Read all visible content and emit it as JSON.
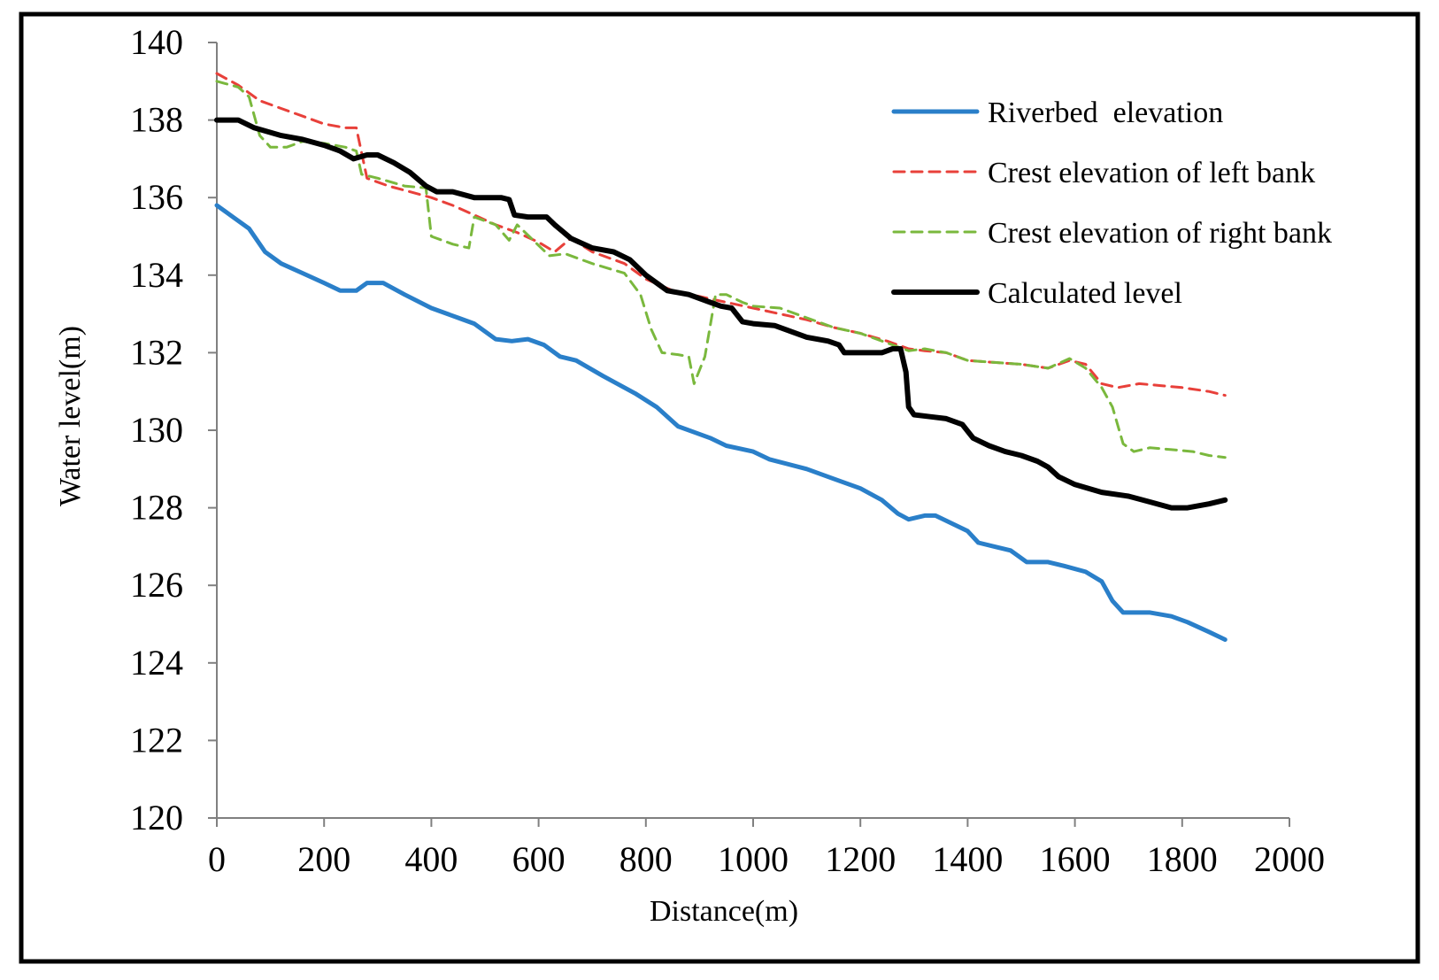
{
  "chart_data": {
    "type": "line",
    "title": "",
    "xlabel": "Distance(m)",
    "ylabel": "Water level(m)",
    "xlim": [
      0,
      2000
    ],
    "ylim": [
      120,
      140
    ],
    "xticks": [
      0,
      200,
      400,
      600,
      800,
      1000,
      1200,
      1400,
      1600,
      1800,
      2000
    ],
    "yticks": [
      120,
      122,
      124,
      126,
      128,
      130,
      132,
      134,
      136,
      138,
      140
    ],
    "grid": false,
    "legend_position": "top-right",
    "series": [
      {
        "name": "Riverbed  elevation",
        "color": "#2a7fc9",
        "style": "solid",
        "points": [
          [
            0,
            135.8
          ],
          [
            30,
            135.5
          ],
          [
            60,
            135.2
          ],
          [
            90,
            134.6
          ],
          [
            120,
            134.3
          ],
          [
            160,
            134.05
          ],
          [
            200,
            133.8
          ],
          [
            230,
            133.6
          ],
          [
            260,
            133.6
          ],
          [
            280,
            133.8
          ],
          [
            310,
            133.8
          ],
          [
            350,
            133.5
          ],
          [
            400,
            133.15
          ],
          [
            450,
            132.9
          ],
          [
            480,
            132.75
          ],
          [
            520,
            132.35
          ],
          [
            550,
            132.3
          ],
          [
            580,
            132.35
          ],
          [
            610,
            132.2
          ],
          [
            640,
            131.9
          ],
          [
            670,
            131.8
          ],
          [
            720,
            131.4
          ],
          [
            780,
            130.95
          ],
          [
            820,
            130.6
          ],
          [
            860,
            130.1
          ],
          [
            890,
            129.95
          ],
          [
            920,
            129.8
          ],
          [
            950,
            129.6
          ],
          [
            1000,
            129.45
          ],
          [
            1030,
            129.25
          ],
          [
            1100,
            129.0
          ],
          [
            1150,
            128.75
          ],
          [
            1200,
            128.5
          ],
          [
            1240,
            128.2
          ],
          [
            1270,
            127.85
          ],
          [
            1290,
            127.7
          ],
          [
            1320,
            127.8
          ],
          [
            1340,
            127.8
          ],
          [
            1370,
            127.6
          ],
          [
            1400,
            127.4
          ],
          [
            1420,
            127.1
          ],
          [
            1450,
            127.0
          ],
          [
            1480,
            126.9
          ],
          [
            1510,
            126.6
          ],
          [
            1550,
            126.6
          ],
          [
            1580,
            126.5
          ],
          [
            1620,
            126.35
          ],
          [
            1650,
            126.1
          ],
          [
            1670,
            125.6
          ],
          [
            1690,
            125.3
          ],
          [
            1720,
            125.3
          ],
          [
            1740,
            125.3
          ],
          [
            1780,
            125.2
          ],
          [
            1810,
            125.05
          ],
          [
            1850,
            124.8
          ],
          [
            1880,
            124.6
          ]
        ]
      },
      {
        "name": "Crest elevation of left bank",
        "color": "#e8403a",
        "style": "dashed",
        "points": [
          [
            0,
            139.2
          ],
          [
            40,
            138.9
          ],
          [
            80,
            138.5
          ],
          [
            120,
            138.3
          ],
          [
            160,
            138.1
          ],
          [
            200,
            137.9
          ],
          [
            240,
            137.8
          ],
          [
            260,
            137.8
          ],
          [
            280,
            136.5
          ],
          [
            320,
            136.3
          ],
          [
            360,
            136.15
          ],
          [
            400,
            136.0
          ],
          [
            440,
            135.8
          ],
          [
            480,
            135.55
          ],
          [
            520,
            135.3
          ],
          [
            560,
            135.1
          ],
          [
            600,
            134.85
          ],
          [
            630,
            134.6
          ],
          [
            660,
            134.95
          ],
          [
            700,
            134.6
          ],
          [
            760,
            134.3
          ],
          [
            800,
            133.9
          ],
          [
            850,
            133.6
          ],
          [
            900,
            133.45
          ],
          [
            950,
            133.3
          ],
          [
            1000,
            133.15
          ],
          [
            1050,
            133.0
          ],
          [
            1100,
            132.85
          ],
          [
            1150,
            132.65
          ],
          [
            1200,
            132.5
          ],
          [
            1250,
            132.3
          ],
          [
            1290,
            132.1
          ],
          [
            1320,
            132.05
          ],
          [
            1360,
            132.0
          ],
          [
            1400,
            131.8
          ],
          [
            1450,
            131.75
          ],
          [
            1500,
            131.7
          ],
          [
            1550,
            131.6
          ],
          [
            1590,
            131.8
          ],
          [
            1620,
            131.7
          ],
          [
            1650,
            131.2
          ],
          [
            1680,
            131.1
          ],
          [
            1720,
            131.2
          ],
          [
            1760,
            131.15
          ],
          [
            1800,
            131.1
          ],
          [
            1850,
            131.0
          ],
          [
            1880,
            130.9
          ]
        ]
      },
      {
        "name": "Crest elevation of right bank",
        "color": "#7ab83d",
        "style": "dashed",
        "points": [
          [
            0,
            139.0
          ],
          [
            40,
            138.85
          ],
          [
            60,
            138.6
          ],
          [
            80,
            137.6
          ],
          [
            100,
            137.3
          ],
          [
            130,
            137.3
          ],
          [
            160,
            137.45
          ],
          [
            200,
            137.4
          ],
          [
            240,
            137.3
          ],
          [
            260,
            137.2
          ],
          [
            270,
            136.6
          ],
          [
            300,
            136.5
          ],
          [
            350,
            136.3
          ],
          [
            390,
            136.25
          ],
          [
            400,
            135.0
          ],
          [
            440,
            134.8
          ],
          [
            470,
            134.7
          ],
          [
            480,
            135.5
          ],
          [
            520,
            135.3
          ],
          [
            545,
            134.9
          ],
          [
            560,
            135.3
          ],
          [
            590,
            134.9
          ],
          [
            620,
            134.5
          ],
          [
            650,
            134.55
          ],
          [
            700,
            134.3
          ],
          [
            760,
            134.05
          ],
          [
            790,
            133.5
          ],
          [
            810,
            132.6
          ],
          [
            830,
            132.0
          ],
          [
            860,
            131.95
          ],
          [
            880,
            131.9
          ],
          [
            890,
            131.2
          ],
          [
            910,
            131.9
          ],
          [
            930,
            133.5
          ],
          [
            950,
            133.5
          ],
          [
            980,
            133.3
          ],
          [
            1000,
            133.2
          ],
          [
            1050,
            133.15
          ],
          [
            1100,
            132.9
          ],
          [
            1150,
            132.65
          ],
          [
            1200,
            132.5
          ],
          [
            1250,
            132.25
          ],
          [
            1290,
            132.05
          ],
          [
            1320,
            132.1
          ],
          [
            1360,
            132.0
          ],
          [
            1400,
            131.8
          ],
          [
            1450,
            131.75
          ],
          [
            1500,
            131.7
          ],
          [
            1550,
            131.6
          ],
          [
            1590,
            131.85
          ],
          [
            1620,
            131.6
          ],
          [
            1650,
            131.1
          ],
          [
            1670,
            130.6
          ],
          [
            1690,
            129.65
          ],
          [
            1710,
            129.45
          ],
          [
            1740,
            129.55
          ],
          [
            1780,
            129.5
          ],
          [
            1820,
            129.45
          ],
          [
            1850,
            129.35
          ],
          [
            1880,
            129.3
          ]
        ]
      },
      {
        "name": "Calculated level",
        "color": "#000000",
        "style": "solid",
        "points": [
          [
            0,
            138.0
          ],
          [
            40,
            138.0
          ],
          [
            70,
            137.8
          ],
          [
            120,
            137.6
          ],
          [
            160,
            137.5
          ],
          [
            200,
            137.35
          ],
          [
            230,
            137.2
          ],
          [
            255,
            137.0
          ],
          [
            280,
            137.1
          ],
          [
            300,
            137.1
          ],
          [
            330,
            136.9
          ],
          [
            360,
            136.65
          ],
          [
            390,
            136.3
          ],
          [
            410,
            136.15
          ],
          [
            440,
            136.15
          ],
          [
            480,
            136.0
          ],
          [
            530,
            136.0
          ],
          [
            545,
            135.95
          ],
          [
            555,
            135.55
          ],
          [
            580,
            135.5
          ],
          [
            615,
            135.5
          ],
          [
            630,
            135.3
          ],
          [
            660,
            134.95
          ],
          [
            700,
            134.7
          ],
          [
            740,
            134.6
          ],
          [
            770,
            134.4
          ],
          [
            800,
            134.0
          ],
          [
            840,
            133.6
          ],
          [
            880,
            133.5
          ],
          [
            920,
            133.3
          ],
          [
            940,
            133.2
          ],
          [
            960,
            133.15
          ],
          [
            980,
            132.8
          ],
          [
            1000,
            132.75
          ],
          [
            1040,
            132.7
          ],
          [
            1070,
            132.55
          ],
          [
            1100,
            132.4
          ],
          [
            1140,
            132.3
          ],
          [
            1160,
            132.2
          ],
          [
            1170,
            132.0
          ],
          [
            1200,
            132.0
          ],
          [
            1240,
            132.0
          ],
          [
            1260,
            132.1
          ],
          [
            1275,
            132.1
          ],
          [
            1285,
            131.5
          ],
          [
            1290,
            130.6
          ],
          [
            1300,
            130.4
          ],
          [
            1330,
            130.35
          ],
          [
            1360,
            130.3
          ],
          [
            1390,
            130.15
          ],
          [
            1410,
            129.8
          ],
          [
            1440,
            129.6
          ],
          [
            1470,
            129.45
          ],
          [
            1500,
            129.35
          ],
          [
            1530,
            129.2
          ],
          [
            1550,
            129.05
          ],
          [
            1570,
            128.8
          ],
          [
            1600,
            128.6
          ],
          [
            1650,
            128.4
          ],
          [
            1700,
            128.3
          ],
          [
            1740,
            128.15
          ],
          [
            1780,
            128.0
          ],
          [
            1810,
            128.0
          ],
          [
            1850,
            128.1
          ],
          [
            1880,
            128.2
          ]
        ]
      }
    ]
  }
}
